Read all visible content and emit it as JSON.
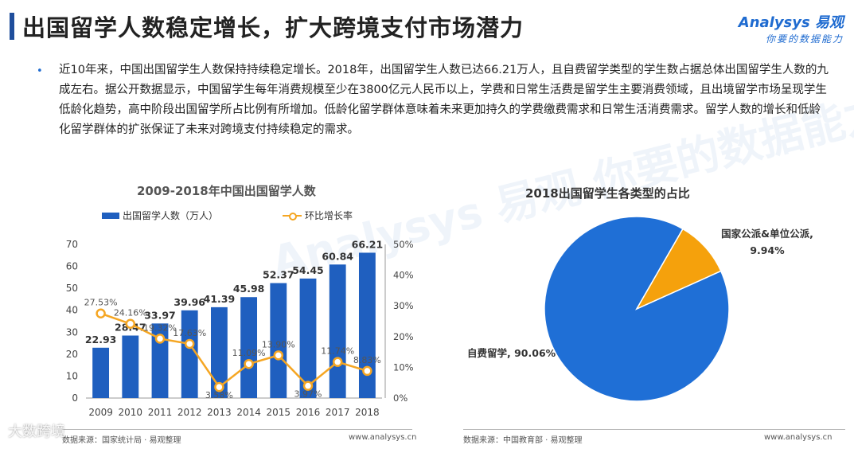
{
  "page": {
    "title": "出国留学人数稳定增长，扩大跨境支付市场潜力",
    "logo_top": "Analysys 易观",
    "logo_bottom": "你要的数据能力",
    "bullet": "•",
    "paragraph": "近10年来，中国出国留学生人数保持持续稳定增长。2018年，出国留学生人数已达66.21万人，且自费留学类型的学生数占据总体出国留学生人数的九成左右。据公开数据显示，中国留学生每年消费规模至少在3800亿元人民币以上，学费和日常生活费是留学生主要消费领域，且出境留学市场呈现学生低龄化趋势，高中阶段出国留学所占比例有所增加。低龄化留学群体意味着未来更加持久的学费缴费需求和日常生活消费需求。留学人数的增长和低龄化留学群体的扩张保证了未来对跨境支付持续稳定的需求。",
    "watermark": "Analysys 易观 你要的数据能力",
    "corner_watermark": "大数跨境",
    "colors": {
      "bar": "#1f5fbf",
      "line": "#f5a623",
      "pie_main": "#1f6fd6",
      "pie_secondary": "#f5a10c",
      "accent": "#1f4e9c"
    }
  },
  "chart_data": [
    {
      "type": "bar",
      "title": "2009-2018年中国出国留学人数",
      "categories": [
        "2009",
        "2010",
        "2011",
        "2012",
        "2013",
        "2014",
        "2015",
        "2016",
        "2017",
        "2018"
      ],
      "series": [
        {
          "name": "出国留学人数（万人）",
          "type": "bar",
          "axis": "left",
          "values": [
            22.93,
            28.47,
            33.97,
            39.96,
            41.39,
            45.98,
            52.37,
            54.45,
            60.84,
            66.21
          ],
          "labels": [
            "22.93",
            "28.47",
            "33.97",
            "39.96",
            "41.39",
            "45.98",
            "52.37",
            "54.45",
            "60.84",
            "66.21"
          ]
        },
        {
          "name": "环比增长率",
          "type": "line",
          "axis": "right",
          "values": [
            27.53,
            24.16,
            19.32,
            17.63,
            3.58,
            11.09,
            13.9,
            3.97,
            11.74,
            8.83
          ],
          "labels": [
            "27.53%",
            "24.16%",
            "19.32%",
            "17.63%",
            "3.58%",
            "11.09%",
            "13.90%",
            "3.97%",
            "11.74%",
            "8.83%"
          ]
        }
      ],
      "ylim": [
        0,
        70
      ],
      "yticks": [
        "0",
        "10",
        "20",
        "30",
        "40",
        "50",
        "60",
        "70"
      ],
      "y2lim": [
        0,
        50
      ],
      "y2ticks": [
        "0%",
        "10%",
        "20%",
        "30%",
        "40%",
        "50%"
      ],
      "legend_position": "top",
      "grid": false,
      "source": "数据来源：国家统计局 · 易观整理",
      "url": "www.analysys.cn"
    },
    {
      "type": "pie",
      "title": "2018出国留学生各类型的占比",
      "slices": [
        {
          "label": "自费留学, 90.06%",
          "value": 90.06
        },
        {
          "label": "国家公派&单位公派, 9.94%",
          "value": 9.94
        }
      ],
      "source": "数据来源：中国教育部 · 易观整理",
      "url": "www.analysys.cn"
    }
  ]
}
